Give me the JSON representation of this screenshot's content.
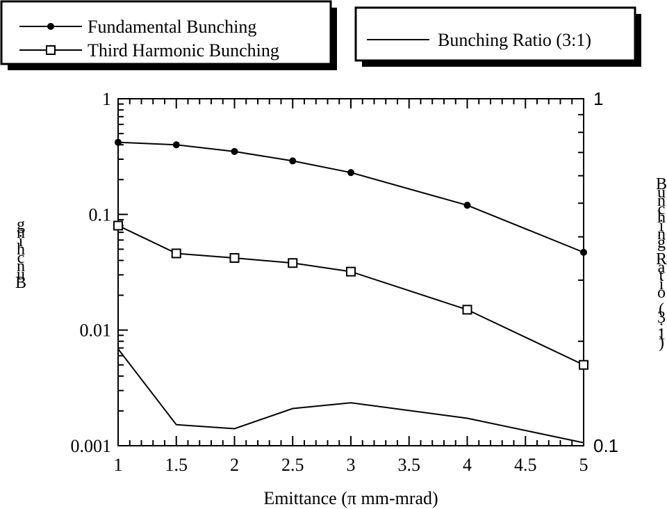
{
  "chart_data": {
    "type": "line",
    "xlabel": "Emittance (π mm-mrad)",
    "ylabel": "Bunching",
    "y2label": "Bunching Ratio (3:1)",
    "xlim": [
      1,
      5
    ],
    "ylim": [
      0.001,
      1
    ],
    "y2lim": [
      0.1,
      1
    ],
    "yscale": "log",
    "y2scale": "log",
    "x_ticks": [
      "1",
      "1.5",
      "2",
      "2.5",
      "3",
      "3.5",
      "4",
      "4.5",
      "5"
    ],
    "y_ticks": [
      "1",
      "0.1",
      "0.01",
      "0.001"
    ],
    "y2_ticks": [
      "1",
      "0.1"
    ],
    "grid": false,
    "series": [
      {
        "name": "Fundamental Bunching",
        "axis": "left",
        "marker": "filled-circle",
        "x": [
          1,
          1.5,
          2,
          2.5,
          3,
          4,
          5
        ],
        "y": [
          0.42,
          0.4,
          0.35,
          0.29,
          0.23,
          0.12,
          0.047
        ]
      },
      {
        "name": "Third Harmonic Bunching",
        "axis": "left",
        "marker": "open-square",
        "x": [
          1,
          1.5,
          2,
          2.5,
          3,
          4,
          5
        ],
        "y": [
          0.08,
          0.046,
          0.042,
          0.038,
          0.032,
          0.015,
          0.005
        ]
      },
      {
        "name": "Bunching Ratio (3:1)",
        "axis": "right",
        "marker": "none",
        "x": [
          1,
          1.5,
          2,
          2.5,
          3,
          4,
          5
        ],
        "y": [
          0.19,
          0.115,
          0.112,
          0.128,
          0.133,
          0.12,
          0.102
        ]
      }
    ],
    "legends": [
      {
        "entries": [
          "Fundamental Bunching",
          "Third Harmonic Bunching"
        ]
      },
      {
        "entries": [
          "Bunching Ratio (3:1)"
        ]
      }
    ]
  }
}
